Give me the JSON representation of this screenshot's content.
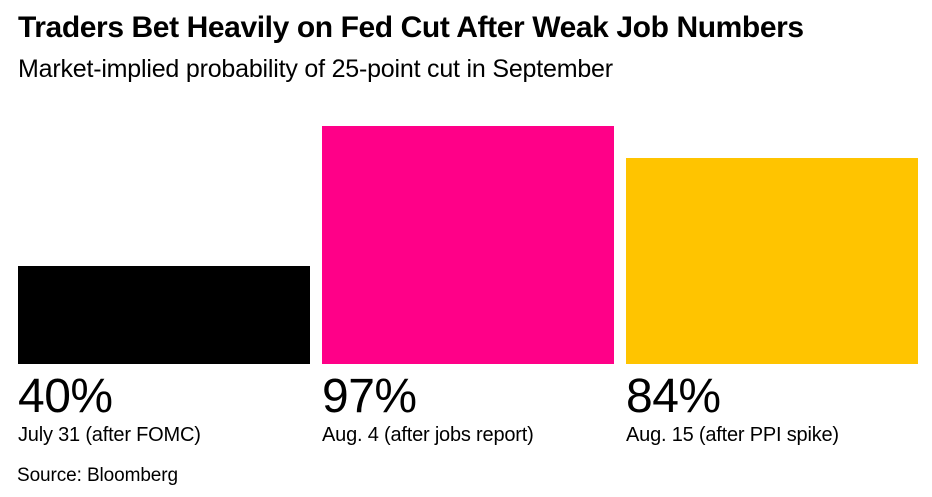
{
  "chart_data": {
    "type": "bar",
    "title": "Traders Bet Heavily on Fed Cut After Weak Job Numbers",
    "subtitle": "Market-implied probability of 25-point cut in September",
    "source": "Source: Bloomberg",
    "categories": [
      "July 31 (after FOMC)",
      "Aug. 4 (after jobs report)",
      "Aug. 15 (after PPI spike)"
    ],
    "values": [
      40,
      97,
      84
    ],
    "value_labels": [
      "40%",
      "97%",
      "84%"
    ],
    "colors": [
      "#000000",
      "#ff0088",
      "#ffc400"
    ],
    "unit": "%",
    "ylim": [
      0,
      100
    ],
    "grid": false,
    "legend": false,
    "background_color": "#ffffff",
    "text_color": "#000000"
  }
}
